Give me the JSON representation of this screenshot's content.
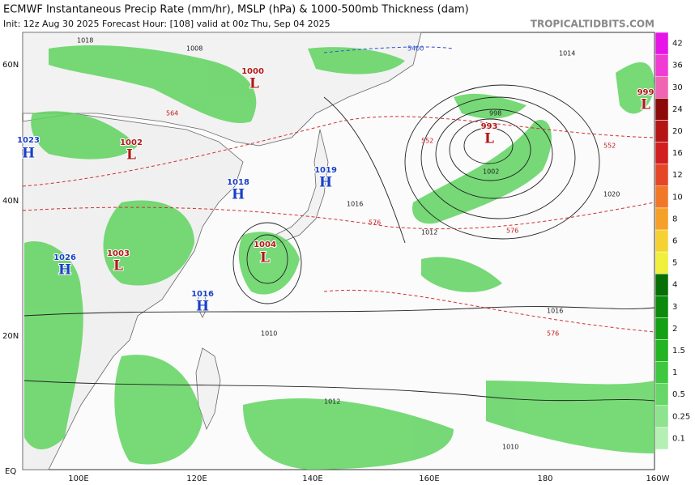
{
  "header": {
    "title": "ECMWF Instantaneous Precip Rate (mm/hr), MSLP (hPa) & 1000-500mb Thickness (dam)",
    "subtitle": "Init: 12z Aug 30 2025   Forecast Hour: [108]   valid at 00z Thu, Sep 04 2025",
    "watermark": "TROPICALTIDBITS.COM"
  },
  "axes": {
    "latitudes": [
      "60N",
      "40N",
      "20N",
      "EQ"
    ],
    "longitudes": [
      "100E",
      "120E",
      "140E",
      "160E",
      "180",
      "160W"
    ]
  },
  "colorbar": {
    "levels": [
      "0.1",
      "0.25",
      "0.5",
      "1",
      "1.5",
      "2",
      "3",
      "4",
      "5",
      "6",
      "8",
      "10",
      "12",
      "16",
      "20",
      "24",
      "30",
      "36",
      "42"
    ],
    "colors": [
      "#b4f0b4",
      "#8ee48e",
      "#66d766",
      "#3fc83f",
      "#22b422",
      "#14a014",
      "#0c8a0c",
      "#067006",
      "#f0f03c",
      "#f5d232",
      "#f5a028",
      "#f07828",
      "#e64628",
      "#d21e1e",
      "#b41414",
      "#8c0a0a",
      "#f064b4",
      "#f03cd2",
      "#e614e6"
    ]
  },
  "pressure_centers": [
    {
      "type": "H",
      "value": "1023"
    },
    {
      "type": "L",
      "value": "1002"
    },
    {
      "type": "L",
      "value": "1000"
    },
    {
      "type": "H",
      "value": "1018"
    },
    {
      "type": "H",
      "value": "1019"
    },
    {
      "type": "L",
      "value": "993"
    },
    {
      "type": "L",
      "value": "999"
    },
    {
      "type": "H",
      "value": "1026"
    },
    {
      "type": "L",
      "value": "1003"
    },
    {
      "type": "L",
      "value": "1004"
    },
    {
      "type": "H",
      "value": "1016"
    }
  ],
  "isobar_labels": [
    "1018",
    "1008",
    "1014",
    "998",
    "1002",
    "1020",
    "1016",
    "1012",
    "1016",
    "1010",
    "1012",
    "1010"
  ],
  "thickness_labels": [
    "552",
    "552",
    "576",
    "576",
    "576",
    "564",
    "5400"
  ]
}
